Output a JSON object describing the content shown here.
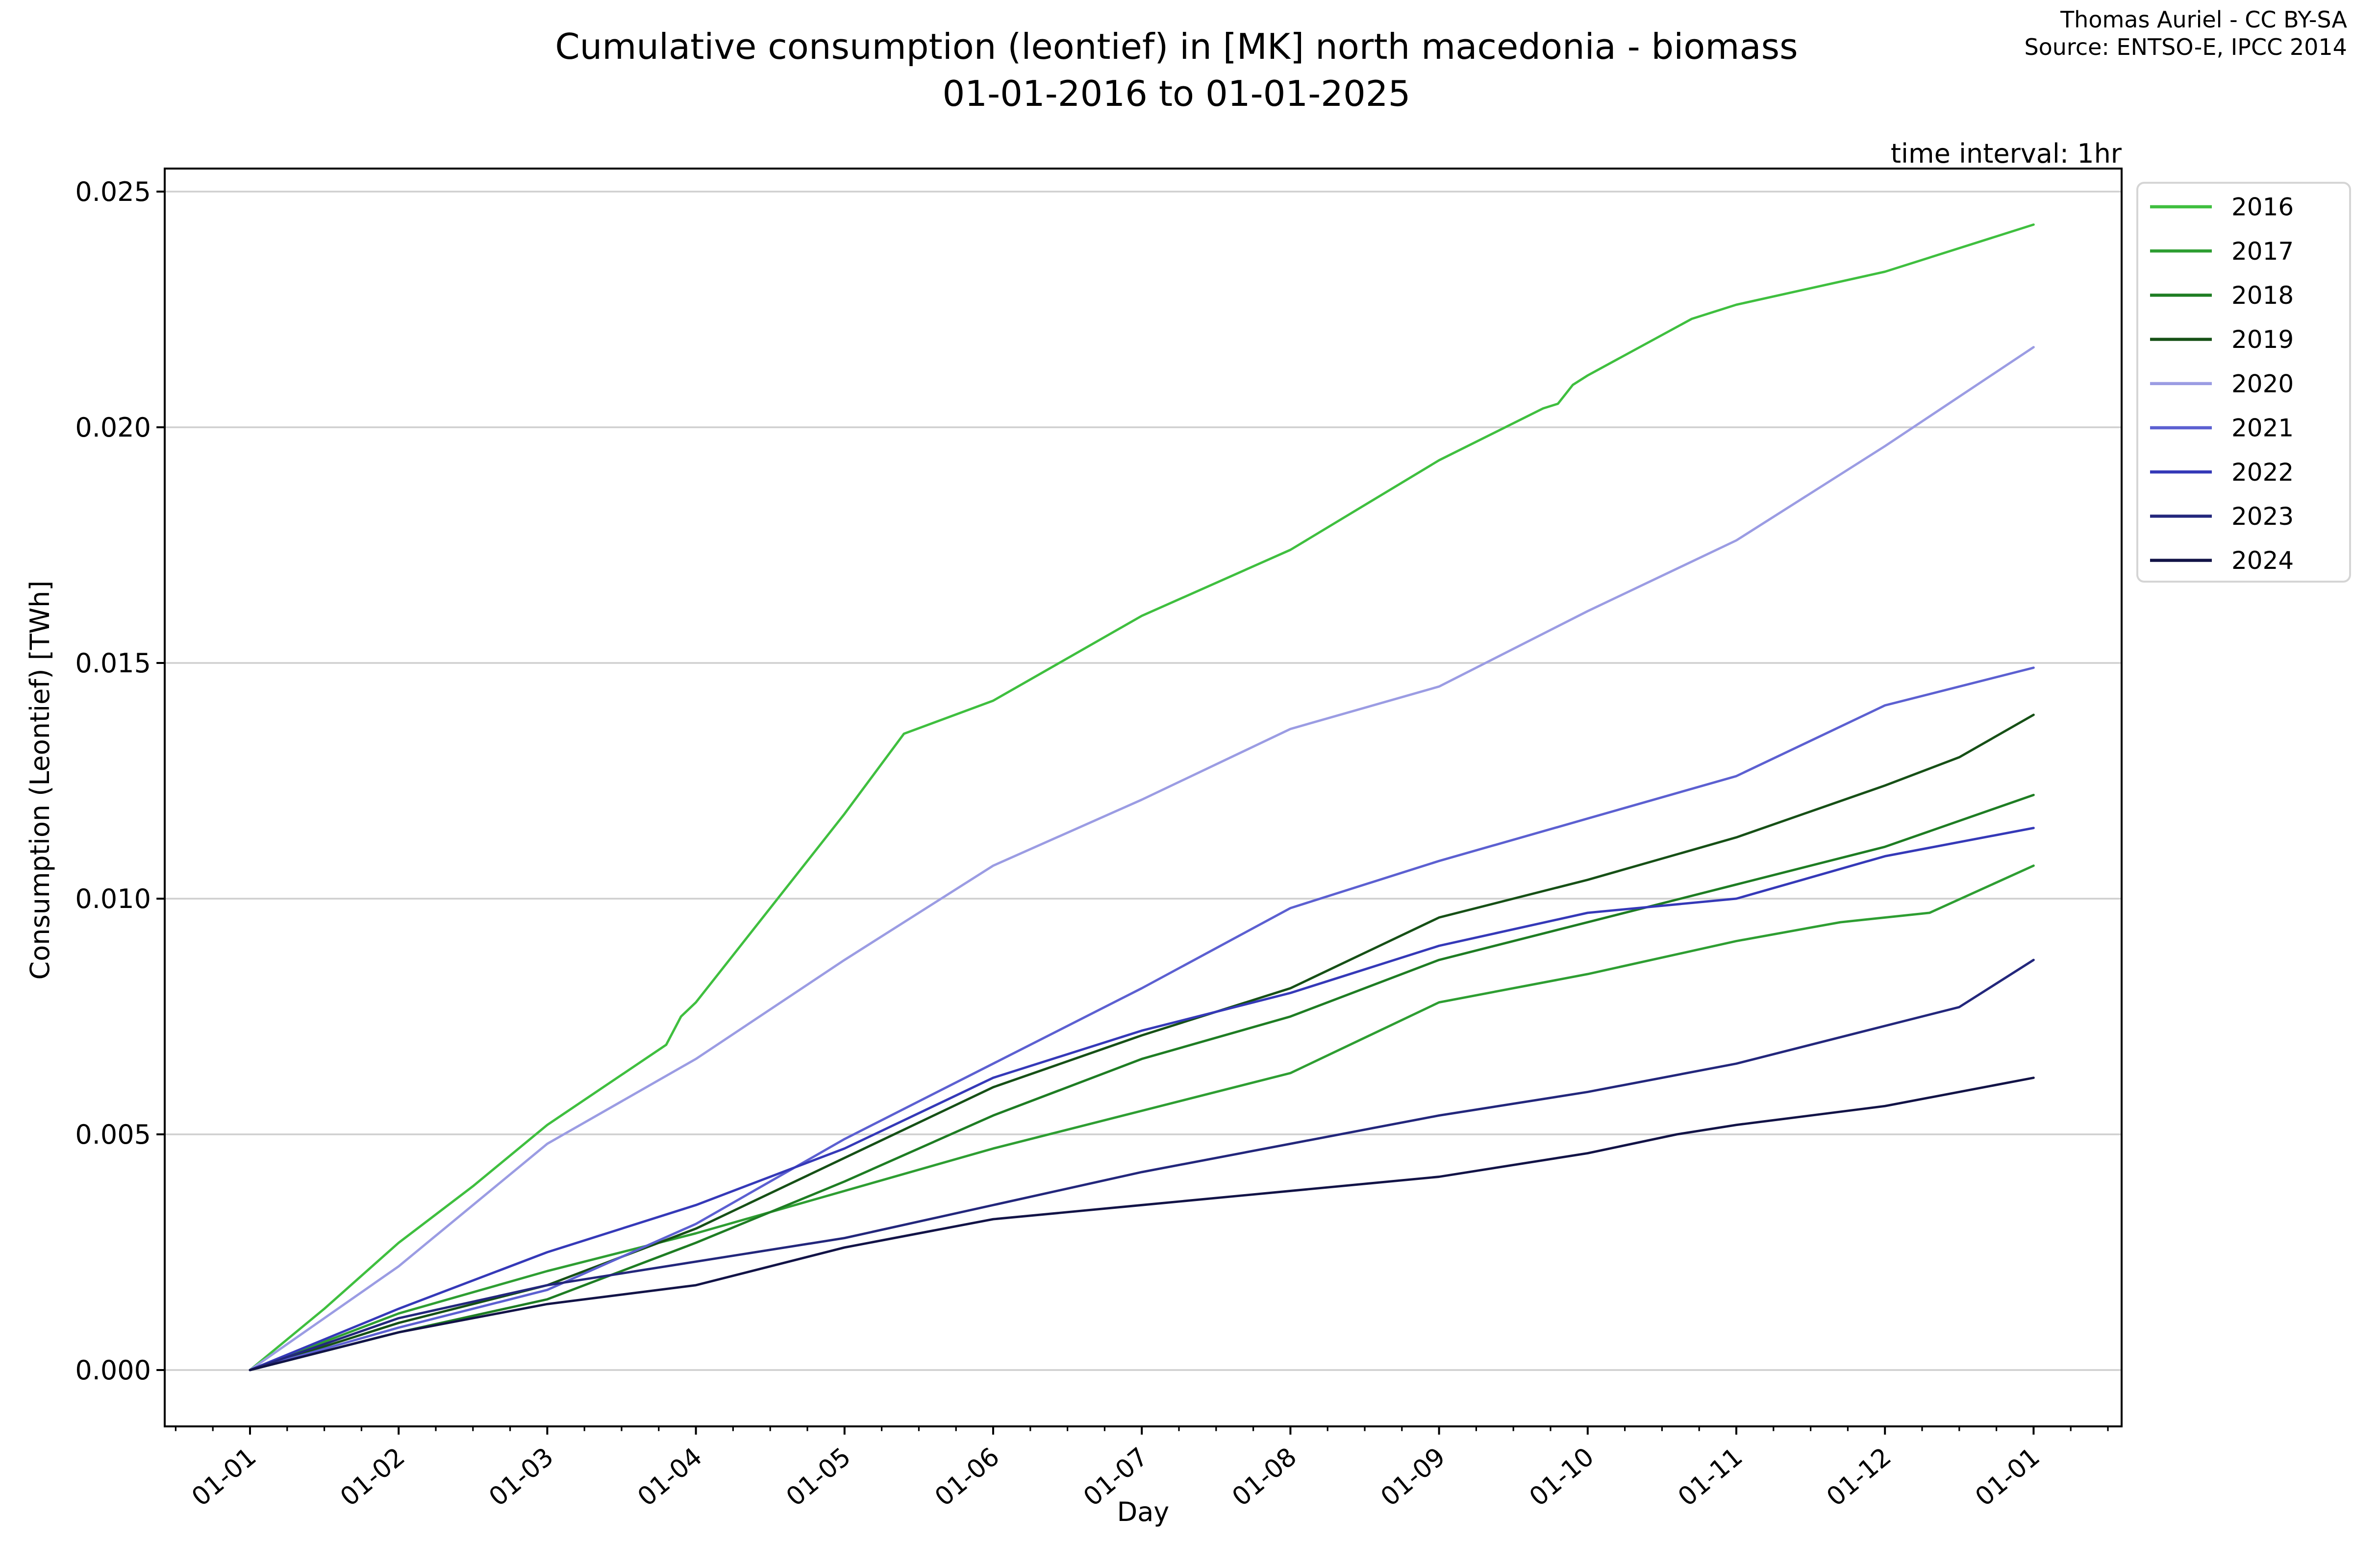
{
  "header": {
    "title_line1": "Cumulative consumption (leontief) in [MK] north macedonia - biomass",
    "title_line2": "01-01-2016 to 01-01-2025",
    "attribution_line1": "Thomas Auriel - CC BY-SA",
    "attribution_line2": "Source: ENTSO-E, IPCC 2014",
    "time_interval_note": "time interval: 1hr"
  },
  "chart_data": {
    "type": "line",
    "title": "Cumulative consumption (leontief) in [MK] north macedonia - biomass 01-01-2016 to 01-01-2025",
    "xlabel": "Day",
    "ylabel": "Consumption (Leontief) [TWh]",
    "grid": "horizontal-only",
    "legend_position": "outside-upper-right",
    "x_unit": "months from Jan 1",
    "xlim": [
      -0.57,
      12.59
    ],
    "ylim": [
      -0.0012,
      0.02548
    ],
    "x_tick_labels": [
      "01-01",
      "01-02",
      "01-03",
      "01-04",
      "01-05",
      "01-06",
      "01-07",
      "01-08",
      "01-09",
      "01-10",
      "01-11",
      "01-12",
      "01-01"
    ],
    "x_tick_months": [
      0,
      1,
      2,
      3,
      4,
      5,
      6,
      7,
      8,
      9,
      10,
      11,
      12
    ],
    "y_tick_labels": [
      "0.000",
      "0.005",
      "0.010",
      "0.015",
      "0.020",
      "0.025"
    ],
    "y_tick_values": [
      0.0,
      0.005,
      0.01,
      0.015,
      0.02,
      0.025
    ],
    "colors": {
      "grid": "#cfcfcf",
      "spine": "#000000",
      "legend_border": "#d5d5d5",
      "legend_background": "#ffffff"
    },
    "series": [
      {
        "name": "2016",
        "color": "#3fbf3f",
        "x": [
          0,
          0.5,
          1,
          1.5,
          2,
          2.8,
          2.9,
          3,
          3.5,
          4,
          4.4,
          5,
          6,
          7,
          8,
          8.7,
          8.8,
          8.9,
          9,
          9.7,
          10,
          11,
          12
        ],
        "values": [
          0,
          0.0013,
          0.0027,
          0.0039,
          0.0052,
          0.0069,
          0.0075,
          0.0078,
          0.0098,
          0.0118,
          0.0135,
          0.0142,
          0.016,
          0.0174,
          0.0193,
          0.0204,
          0.0205,
          0.0209,
          0.0211,
          0.0223,
          0.0226,
          0.0233,
          0.0243
        ]
      },
      {
        "name": "2017",
        "color": "#2e9e32",
        "x": [
          0,
          1,
          2,
          3,
          4,
          5,
          6,
          7,
          8,
          9,
          10,
          10.7,
          11.3,
          12
        ],
        "values": [
          0,
          0.0012,
          0.0021,
          0.0029,
          0.0038,
          0.0047,
          0.0055,
          0.0063,
          0.0078,
          0.0084,
          0.0091,
          0.0095,
          0.0097,
          0.0107
        ]
      },
      {
        "name": "2018",
        "color": "#1e7d23",
        "x": [
          0,
          1,
          2,
          3,
          4,
          5,
          6,
          7,
          8,
          9,
          10,
          11,
          12
        ],
        "values": [
          0,
          0.0008,
          0.0015,
          0.0027,
          0.004,
          0.0054,
          0.0066,
          0.0075,
          0.0087,
          0.0095,
          0.0103,
          0.0111,
          0.0122
        ]
      },
      {
        "name": "2019",
        "color": "#165016",
        "x": [
          0,
          1,
          2,
          3,
          4,
          5,
          6,
          7,
          8,
          9,
          10,
          11,
          11.5,
          12
        ],
        "values": [
          0,
          0.001,
          0.0018,
          0.003,
          0.0045,
          0.006,
          0.0071,
          0.0081,
          0.0096,
          0.0104,
          0.0113,
          0.0124,
          0.013,
          0.0139
        ]
      },
      {
        "name": "2020",
        "color": "#9b9ce3",
        "x": [
          0,
          1,
          2,
          3,
          4,
          5,
          6,
          7,
          8,
          9,
          10,
          11,
          12
        ],
        "values": [
          0,
          0.0022,
          0.0048,
          0.0066,
          0.0087,
          0.0107,
          0.0121,
          0.0136,
          0.0145,
          0.0161,
          0.0176,
          0.0196,
          0.0217
        ]
      },
      {
        "name": "2021",
        "color": "#5c60d1",
        "x": [
          0,
          1,
          2,
          3,
          4,
          5,
          6,
          7,
          8,
          9,
          10,
          11,
          12
        ],
        "values": [
          0,
          0.0009,
          0.0017,
          0.0031,
          0.0049,
          0.0065,
          0.0081,
          0.0098,
          0.0108,
          0.0117,
          0.0126,
          0.0141,
          0.0149
        ]
      },
      {
        "name": "2022",
        "color": "#3539b8",
        "x": [
          0,
          1,
          2,
          3,
          4,
          5,
          6,
          7,
          8,
          9,
          10,
          11,
          12
        ],
        "values": [
          0,
          0.0013,
          0.0025,
          0.0035,
          0.0047,
          0.0062,
          0.0072,
          0.008,
          0.009,
          0.0097,
          0.01,
          0.0109,
          0.0115
        ]
      },
      {
        "name": "2023",
        "color": "#23277c",
        "x": [
          0,
          1,
          2,
          3,
          4,
          5,
          6,
          7,
          8,
          9,
          10,
          11,
          11.5,
          12
        ],
        "values": [
          0,
          0.0011,
          0.0018,
          0.0023,
          0.0028,
          0.0035,
          0.0042,
          0.0048,
          0.0054,
          0.0059,
          0.0065,
          0.0073,
          0.0077,
          0.0087
        ]
      },
      {
        "name": "2024",
        "color": "#121347",
        "x": [
          0,
          1,
          2,
          3,
          4,
          5,
          6,
          7,
          8,
          9,
          9.6,
          10,
          11,
          12
        ],
        "values": [
          0,
          0.0008,
          0.0014,
          0.0018,
          0.0026,
          0.0032,
          0.0035,
          0.0038,
          0.0041,
          0.0046,
          0.005,
          0.0052,
          0.0056,
          0.0062
        ]
      }
    ]
  }
}
